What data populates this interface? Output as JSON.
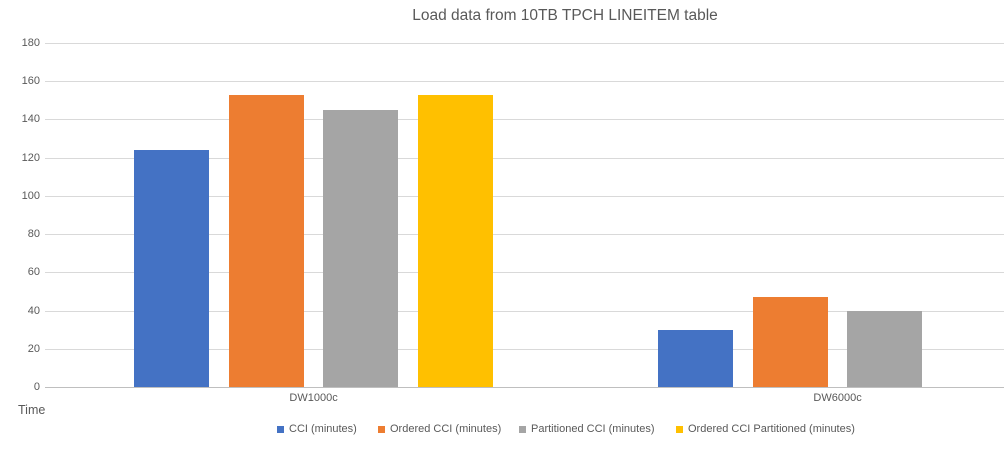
{
  "chart_data": {
    "type": "bar",
    "title": "Load data from 10TB TPCH LINEITEM table",
    "xlabel": "",
    "ylabel": "Time",
    "categories": [
      "DW1000c",
      "DW6000c"
    ],
    "series": [
      {
        "name": "CCI (minutes)",
        "color": "#4472C4",
        "values": [
          124,
          30
        ]
      },
      {
        "name": "Ordered CCI (minutes)",
        "color": "#ED7D31",
        "values": [
          153,
          47
        ]
      },
      {
        "name": "Partitioned CCI (minutes)",
        "color": "#A5A5A5",
        "values": [
          145,
          40
        ]
      },
      {
        "name": "Ordered CCI Partitioned (minutes)",
        "color": "#FFC000",
        "values": [
          153,
          null
        ]
      }
    ],
    "ylim": [
      0,
      180
    ],
    "ytick_step": 20,
    "yticks": [
      0,
      20,
      40,
      60,
      80,
      100,
      120,
      140,
      160,
      180
    ],
    "grid": true,
    "legend_position": "bottom"
  },
  "colors": {
    "gridline": "#D9D9D9",
    "axis_line": "#BFBFBF",
    "text": "#595959",
    "background": "#FFFFFF"
  }
}
